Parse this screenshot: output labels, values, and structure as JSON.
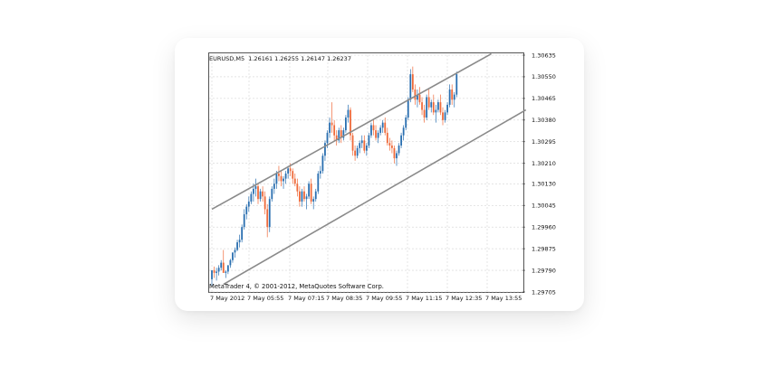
{
  "header": {
    "symbol": "EURUSD,M5",
    "quote": "1.26161 1.26255 1.26147 1.26237"
  },
  "copyright": "MetaTrader 4, © 2001-2012, MetaQuotes Software Corp.",
  "colors": {
    "bull": "#2a6fb0",
    "bear": "#ef6a3a",
    "grid": "#c9c9c9",
    "channel": "#8a8a8a"
  },
  "chart_data": {
    "type": "candlestick",
    "title": "",
    "y_ticks": [
      "1.30635",
      "1.30550",
      "1.30465",
      "1.30380",
      "1.30295",
      "1.30210",
      "1.30130",
      "1.30045",
      "1.29960",
      "1.29875",
      "1.29790",
      "1.29705"
    ],
    "x_ticks": [
      "7 May 2012",
      "7 May 05:55",
      "7 May 07:15",
      "7 May 08:35",
      "7 May 09:55",
      "7 May 11:15",
      "7 May 12:35",
      "7 May 13:55"
    ],
    "ylim": [
      1.29705,
      1.30635
    ],
    "grid": true,
    "channel_upper": [
      [
        0,
        1.3003
      ],
      [
        121,
        1.3064
      ]
    ],
    "channel_lower": [
      [
        5,
        1.29735
      ],
      [
        136,
        1.3042
      ]
    ],
    "candles": [
      [
        1.29755,
        1.2979,
        1.2973,
        1.2979
      ],
      [
        1.2979,
        1.29805,
        1.2976,
        1.2978
      ],
      [
        1.2978,
        1.298,
        1.2975,
        1.29785
      ],
      [
        1.29785,
        1.2981,
        1.2977,
        1.298
      ],
      [
        1.298,
        1.2983,
        1.2979,
        1.2982
      ],
      [
        1.2982,
        1.2987,
        1.2978,
        1.2978
      ],
      [
        1.2978,
        1.2979,
        1.2976,
        1.29785
      ],
      [
        1.29785,
        1.2981,
        1.29775,
        1.2981
      ],
      [
        1.2981,
        1.29835,
        1.298,
        1.2983
      ],
      [
        1.2983,
        1.2986,
        1.2982,
        1.2986
      ],
      [
        1.2986,
        1.2988,
        1.2984,
        1.2987
      ],
      [
        1.2987,
        1.2991,
        1.29865,
        1.299
      ],
      [
        1.299,
        1.2993,
        1.2988,
        1.2991
      ],
      [
        1.2991,
        1.2997,
        1.299,
        1.2996
      ],
      [
        1.2996,
        1.3003,
        1.2995,
        1.3001
      ],
      [
        1.3001,
        1.3005,
        1.2999,
        1.3004
      ],
      [
        1.3004,
        1.3008,
        1.3002,
        1.3006
      ],
      [
        1.3006,
        1.301,
        1.3005,
        1.3009
      ],
      [
        1.3009,
        1.3013,
        1.3006,
        1.3011
      ],
      [
        1.3011,
        1.3015,
        1.3008,
        1.3012
      ],
      [
        1.3012,
        1.3013,
        1.3005,
        1.3007
      ],
      [
        1.3007,
        1.3011,
        1.3006,
        1.301
      ],
      [
        1.301,
        1.3012,
        1.3006,
        1.3008
      ],
      [
        1.3008,
        1.301,
        1.3001,
        1.3003
      ],
      [
        1.3003,
        1.3005,
        1.2992,
        1.2996
      ],
      [
        1.2996,
        1.3008,
        1.2994,
        1.3007
      ],
      [
        1.3007,
        1.3012,
        1.3006,
        1.3011
      ],
      [
        1.3011,
        1.3015,
        1.3009,
        1.3013
      ],
      [
        1.3013,
        1.3018,
        1.3011,
        1.3017
      ],
      [
        1.3017,
        1.302,
        1.3014,
        1.3016
      ],
      [
        1.3016,
        1.3018,
        1.3012,
        1.3014
      ],
      [
        1.3014,
        1.3016,
        1.3011,
        1.3015
      ],
      [
        1.3015,
        1.3018,
        1.3013,
        1.3017
      ],
      [
        1.3017,
        1.302,
        1.3015,
        1.3019
      ],
      [
        1.3019,
        1.3021,
        1.3016,
        1.3018
      ],
      [
        1.3018,
        1.3019,
        1.3013,
        1.3015
      ],
      [
        1.3015,
        1.3017,
        1.3012,
        1.3013
      ],
      [
        1.3013,
        1.3015,
        1.3008,
        1.301
      ],
      [
        1.301,
        1.3012,
        1.3004,
        1.3006
      ],
      [
        1.3006,
        1.3011,
        1.3004,
        1.301
      ],
      [
        1.301,
        1.3012,
        1.3006,
        1.3007
      ],
      [
        1.3007,
        1.3009,
        1.3003,
        1.3008
      ],
      [
        1.3008,
        1.3014,
        1.3007,
        1.3013
      ],
      [
        1.3013,
        1.3015,
        1.3005,
        1.3006
      ],
      [
        1.3006,
        1.3008,
        1.3003,
        1.3007
      ],
      [
        1.3007,
        1.3011,
        1.3006,
        1.301
      ],
      [
        1.301,
        1.3018,
        1.3009,
        1.3017
      ],
      [
        1.3017,
        1.302,
        1.3015,
        1.3018
      ],
      [
        1.3018,
        1.3025,
        1.3017,
        1.3024
      ],
      [
        1.3024,
        1.303,
        1.3022,
        1.3029
      ],
      [
        1.3029,
        1.3034,
        1.3027,
        1.3033
      ],
      [
        1.3033,
        1.3039,
        1.3031,
        1.3037
      ],
      [
        1.3037,
        1.3045,
        1.3033,
        1.3036
      ],
      [
        1.3036,
        1.3038,
        1.303,
        1.3032
      ],
      [
        1.3032,
        1.3034,
        1.3028,
        1.303
      ],
      [
        1.303,
        1.3035,
        1.3029,
        1.3034
      ],
      [
        1.3034,
        1.3036,
        1.3029,
        1.3031
      ],
      [
        1.3031,
        1.3035,
        1.303,
        1.3034
      ],
      [
        1.3034,
        1.304,
        1.3033,
        1.3039
      ],
      [
        1.3039,
        1.3044,
        1.3037,
        1.3042
      ],
      [
        1.3042,
        1.3043,
        1.303,
        1.3032
      ],
      [
        1.3032,
        1.3033,
        1.3024,
        1.3026
      ],
      [
        1.3026,
        1.3028,
        1.3022,
        1.3024
      ],
      [
        1.3024,
        1.3028,
        1.3023,
        1.3027
      ],
      [
        1.3027,
        1.303,
        1.3025,
        1.3029
      ],
      [
        1.3029,
        1.3032,
        1.3027,
        1.303
      ],
      [
        1.303,
        1.3032,
        1.3025,
        1.3026
      ],
      [
        1.3026,
        1.3029,
        1.3024,
        1.3028
      ],
      [
        1.3028,
        1.3033,
        1.3027,
        1.3032
      ],
      [
        1.3032,
        1.3037,
        1.3031,
        1.3036
      ],
      [
        1.3036,
        1.3038,
        1.3032,
        1.3034
      ],
      [
        1.3034,
        1.3036,
        1.303,
        1.3031
      ],
      [
        1.3031,
        1.3034,
        1.3029,
        1.3033
      ],
      [
        1.3033,
        1.3036,
        1.3032,
        1.3035
      ],
      [
        1.3035,
        1.3038,
        1.3033,
        1.3037
      ],
      [
        1.3037,
        1.3039,
        1.3032,
        1.3033
      ],
      [
        1.3033,
        1.3035,
        1.3028,
        1.3029
      ],
      [
        1.3029,
        1.3031,
        1.3026,
        1.3028
      ],
      [
        1.3028,
        1.303,
        1.3025,
        1.3027
      ],
      [
        1.3027,
        1.3028,
        1.3021,
        1.3023
      ],
      [
        1.3023,
        1.3026,
        1.302,
        1.3025
      ],
      [
        1.3025,
        1.3029,
        1.3024,
        1.3028
      ],
      [
        1.3028,
        1.3033,
        1.3027,
        1.3032
      ],
      [
        1.3032,
        1.3036,
        1.303,
        1.3035
      ],
      [
        1.3035,
        1.304,
        1.3034,
        1.3039
      ],
      [
        1.3039,
        1.3047,
        1.3038,
        1.3046
      ],
      [
        1.3046,
        1.3058,
        1.3045,
        1.3056
      ],
      [
        1.3056,
        1.3059,
        1.3049,
        1.305
      ],
      [
        1.305,
        1.3052,
        1.3044,
        1.3046
      ],
      [
        1.3046,
        1.305,
        1.3043,
        1.3048
      ],
      [
        1.3048,
        1.3051,
        1.3044,
        1.3045
      ],
      [
        1.3045,
        1.3047,
        1.304,
        1.3042
      ],
      [
        1.3042,
        1.3044,
        1.3037,
        1.3039
      ],
      [
        1.3039,
        1.3048,
        1.3038,
        1.3047
      ],
      [
        1.3047,
        1.305,
        1.3042,
        1.3043
      ],
      [
        1.3043,
        1.3046,
        1.3041,
        1.3045
      ],
      [
        1.3045,
        1.3048,
        1.304,
        1.3041
      ],
      [
        1.3041,
        1.3044,
        1.3037,
        1.3042
      ],
      [
        1.3042,
        1.3046,
        1.3041,
        1.3045
      ],
      [
        1.3045,
        1.3048,
        1.304,
        1.3041
      ],
      [
        1.3041,
        1.3043,
        1.3036,
        1.3038
      ],
      [
        1.3038,
        1.3042,
        1.3037,
        1.3041
      ],
      [
        1.3041,
        1.3045,
        1.304,
        1.3044
      ],
      [
        1.3044,
        1.3052,
        1.3043,
        1.305
      ],
      [
        1.305,
        1.3052,
        1.3044,
        1.3046
      ],
      [
        1.3046,
        1.3049,
        1.3043,
        1.3048
      ],
      [
        1.3048,
        1.3057,
        1.3047,
        1.3056
      ]
    ]
  }
}
